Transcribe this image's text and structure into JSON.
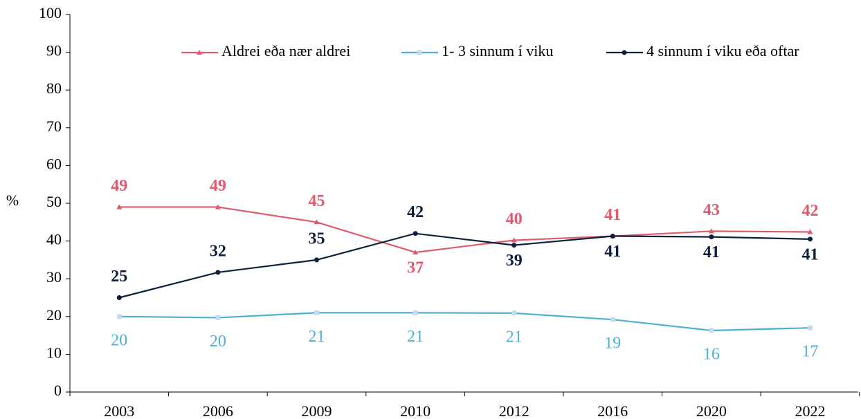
{
  "chart_data": {
    "type": "line",
    "y_label": "%",
    "categories": [
      "2003",
      "2006",
      "2009",
      "2010",
      "2012",
      "2016",
      "2020",
      "2022"
    ],
    "series": [
      {
        "name": "Aldrei eða nær aldrei",
        "color": "#e05a6e",
        "values": [
          49,
          49,
          45,
          37,
          40.2,
          41.3,
          42.6,
          42.4
        ],
        "value_labels": [
          "49",
          "49",
          "45",
          "37",
          "40",
          "41",
          "43",
          "42"
        ]
      },
      {
        "name": "1- 3 sinnum í viku",
        "color": "#4ab0d9",
        "values": [
          20,
          19.7,
          21,
          21,
          20.9,
          19.2,
          16.3,
          17
        ],
        "value_labels": [
          "20",
          "20",
          "21",
          "21",
          "21",
          "19",
          "16",
          "17"
        ]
      },
      {
        "name": "4 sinnum í viku eða oftar",
        "color": "#0d1f3c",
        "values": [
          25,
          31.7,
          35,
          42,
          38.9,
          41.3,
          41.1,
          40.5
        ],
        "value_labels": [
          "25",
          "32",
          "35",
          "42",
          "39",
          "41",
          "41",
          "41"
        ]
      }
    ],
    "ylim": [
      0,
      100
    ],
    "yticks": [
      0,
      10,
      20,
      30,
      40,
      50,
      60,
      70,
      80,
      90,
      100
    ]
  }
}
